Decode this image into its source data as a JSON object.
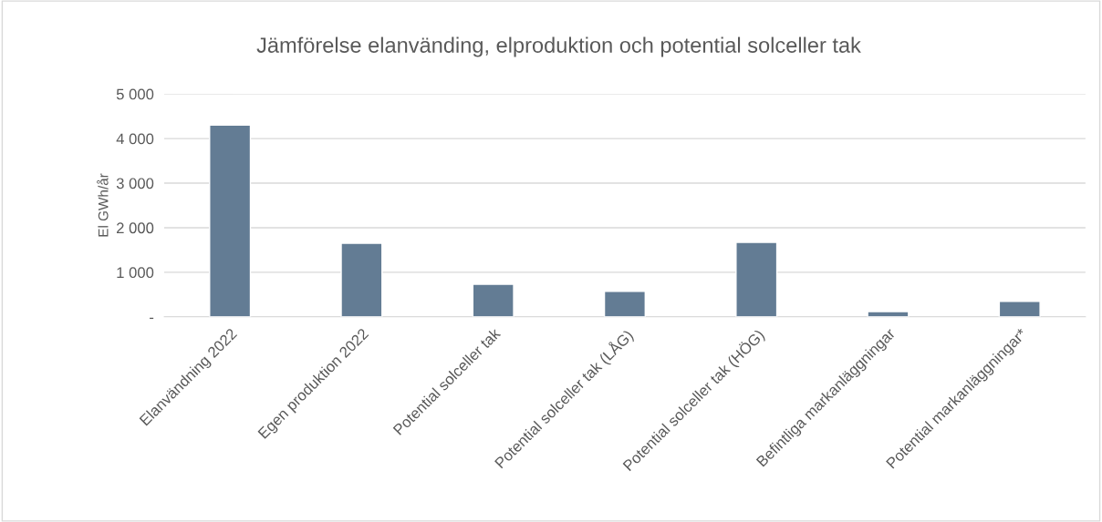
{
  "chart_data": {
    "type": "bar",
    "title": "Jämförelse elanvänding, elproduktion och potential solceller tak",
    "ylabel": "El GWh/år",
    "categories": [
      "Elanvändning 2022",
      "Egen produktion 2022",
      "Potential solceller tak",
      "Potential solceller tak (LÅG)",
      "Potential solceller tak (HÖG)",
      "Befintliga markanläggningar",
      "Potential markanläggningar*"
    ],
    "values": [
      4300,
      1650,
      730,
      570,
      1670,
      120,
      350
    ],
    "color": "#637c94",
    "ylim": [
      0,
      5000
    ],
    "yticks": [
      {
        "value": 0,
        "label": "-"
      },
      {
        "value": 1000,
        "label": "1 000"
      },
      {
        "value": 2000,
        "label": "2 000"
      },
      {
        "value": 3000,
        "label": "3 000"
      },
      {
        "value": 4000,
        "label": "4 000"
      },
      {
        "value": 5000,
        "label": "5 000"
      }
    ],
    "grid": "y",
    "legend": false
  }
}
